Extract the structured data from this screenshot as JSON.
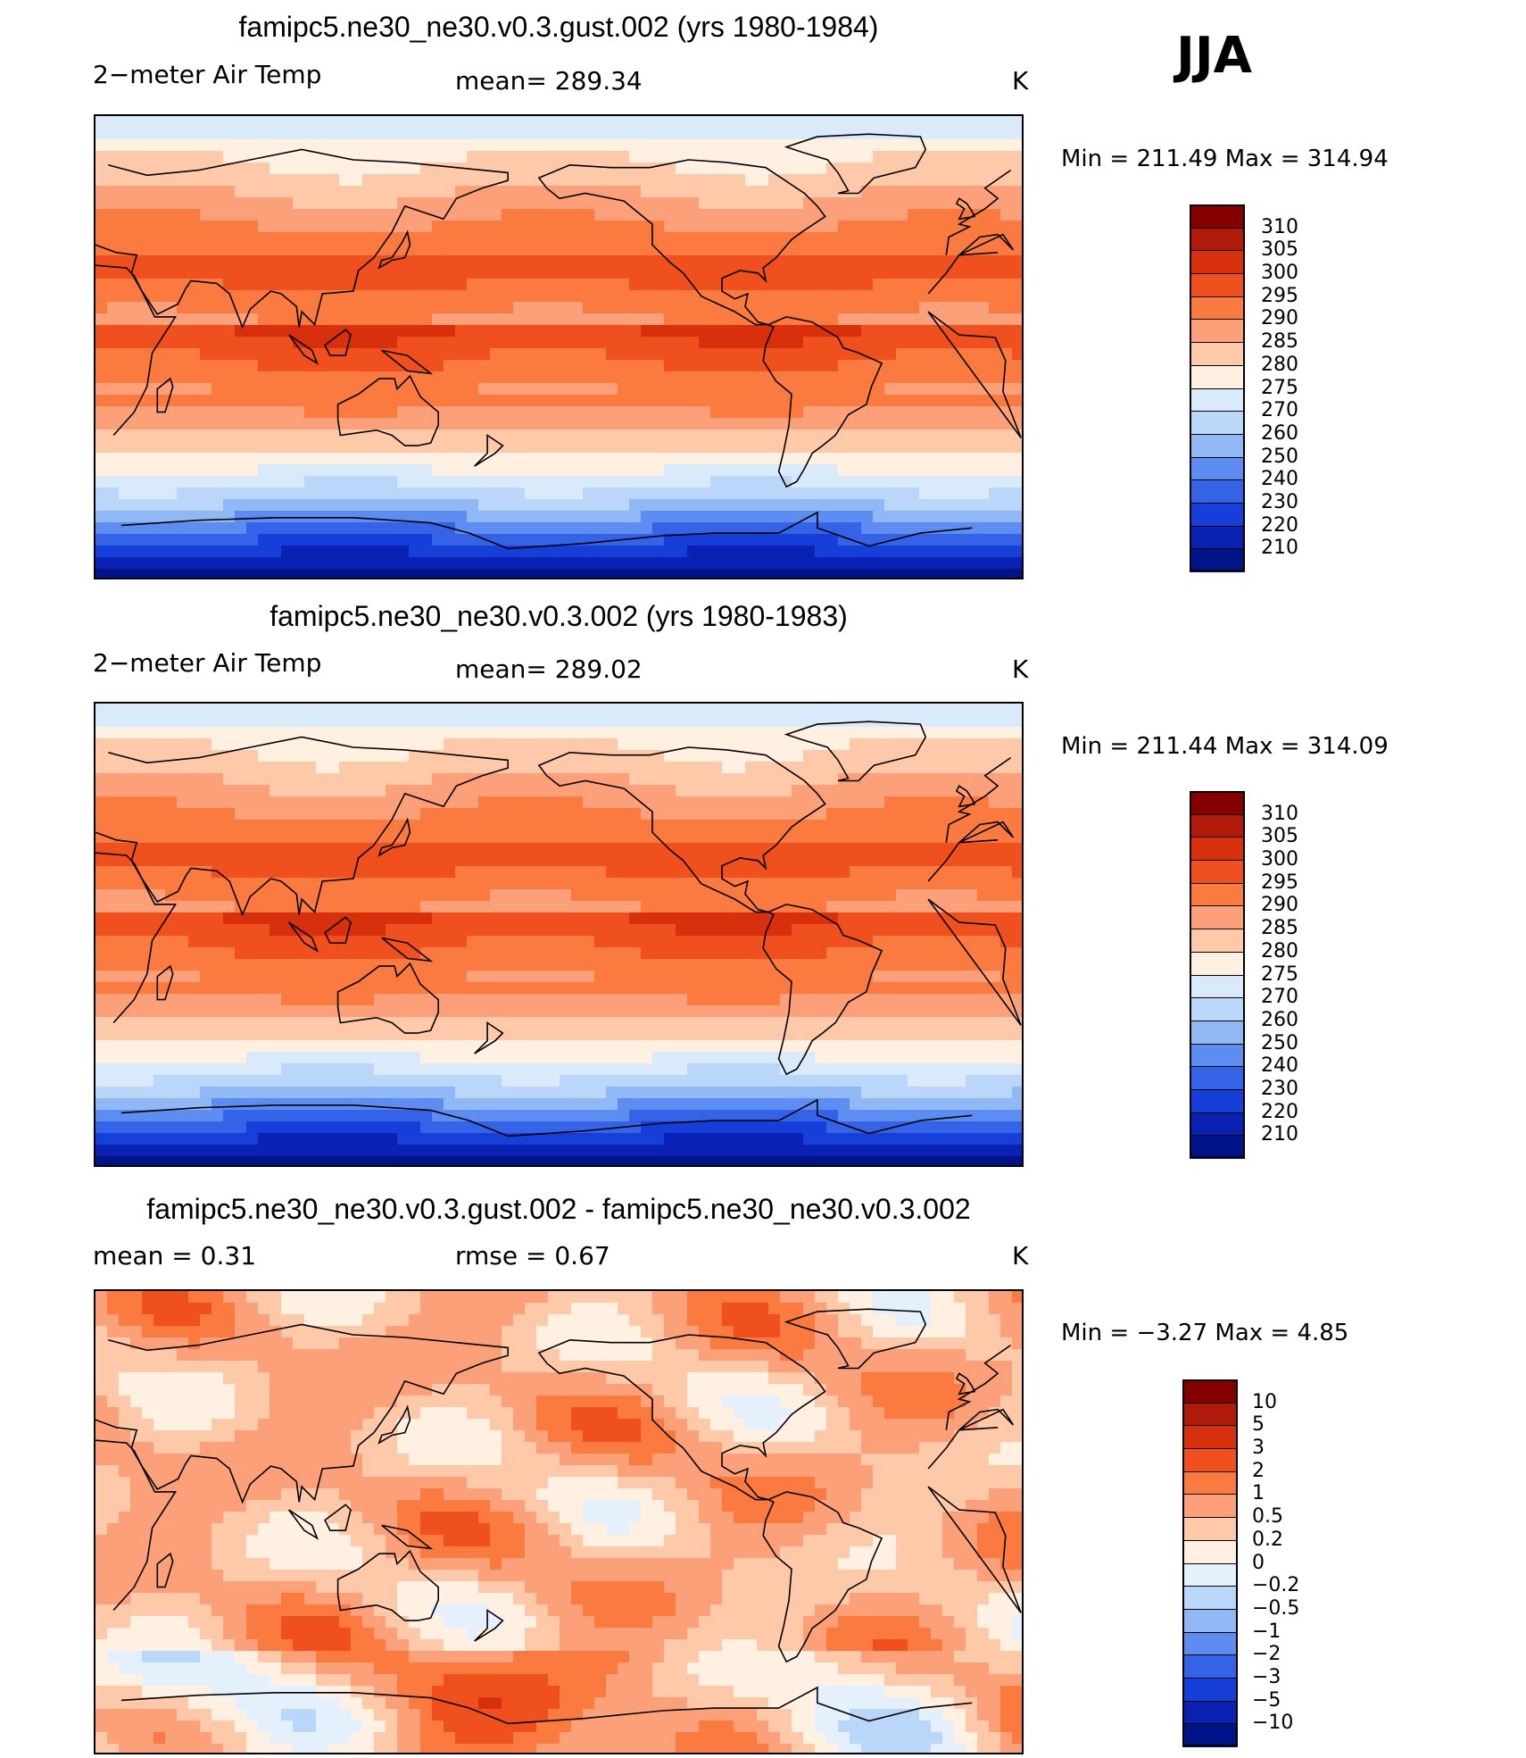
{
  "season": "JJA",
  "panels": [
    {
      "title": "famipc5.ne30_ne30.v0.3.gust.002 (yrs 1980-1984)",
      "variable": "2−meter Air Temp",
      "mean_text": "mean=  289.34",
      "units": "K",
      "minmax_text": "Min  =  211.49  Max  =  314.94",
      "type": "abs",
      "colorbar": [
        "310",
        "305",
        "300",
        "295",
        "290",
        "285",
        "280",
        "275",
        "270",
        "260",
        "250",
        "240",
        "230",
        "220",
        "210"
      ]
    },
    {
      "title": "famipc5.ne30_ne30.v0.3.002 (yrs 1980-1983)",
      "variable": "2−meter Air Temp",
      "mean_text": "mean=  289.02",
      "units": "K",
      "minmax_text": "Min  =  211.44  Max  =  314.09",
      "type": "abs",
      "colorbar": [
        "310",
        "305",
        "300",
        "295",
        "290",
        "285",
        "280",
        "275",
        "270",
        "260",
        "250",
        "240",
        "230",
        "220",
        "210"
      ]
    },
    {
      "title": "famipc5.ne30_ne30.v0.3.gust.002 - famipc5.ne30_ne30.v0.3.002",
      "variable": "mean  =      0.31",
      "mean_text": "rmse  =      0.67",
      "units": "K",
      "minmax_text": "Min  =    −3.27  Max  =      4.85",
      "type": "diff",
      "colorbar": [
        "10",
        "5",
        "3",
        "2",
        "1",
        "0.5",
        "0.2",
        "0",
        "−0.2",
        "−0.5",
        "−1",
        "−2",
        "−3",
        "−5",
        "−10"
      ]
    }
  ],
  "abs_palette": [
    "#870000",
    "#b01a0b",
    "#d8300d",
    "#f0501e",
    "#fa7a40",
    "#fca07a",
    "#fdc9a8",
    "#fff0e2",
    "#d9eafb",
    "#bad6f8",
    "#8fb8f5",
    "#5d8df0",
    "#3563e8",
    "#163ed8",
    "#0a22b4",
    "#011389"
  ],
  "diff_palette": [
    "#870000",
    "#b01a0b",
    "#d8300d",
    "#f0501e",
    "#fa7a40",
    "#fca07a",
    "#fdc9a8",
    "#fff0e2",
    "#e4f0fb",
    "#bad6f8",
    "#8fb8f5",
    "#5d8df0",
    "#3563e8",
    "#163ed8",
    "#0a22b4",
    "#011389"
  ]
}
